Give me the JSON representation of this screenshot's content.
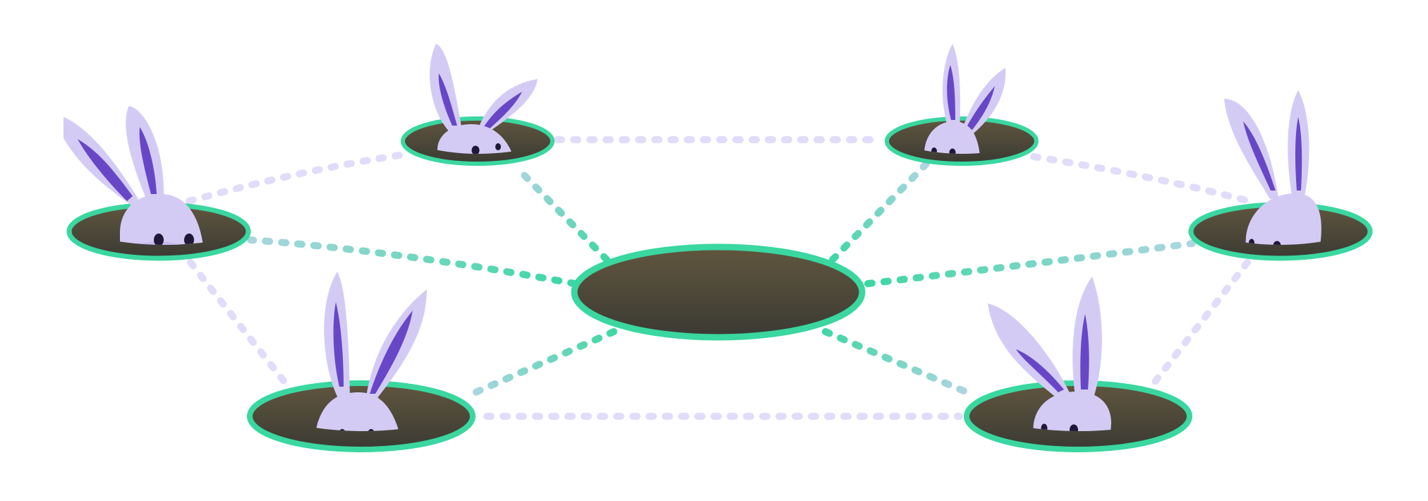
{
  "colors": {
    "background": "#ffffff",
    "hole_rim": "#3ad7a0",
    "hole_top": "#61563f",
    "hole_bottom": "#3a3a33",
    "bunny_body": "#d4cbf5",
    "bunny_shade": "#c6bbf0",
    "bunny_ear_inner": "#6747c7",
    "bunny_eye": "#1f1838",
    "link_green": "#3ad7a0",
    "link_lavender": "#e2dcfa",
    "link_blue": "#b5d4e6"
  },
  "icons": {
    "hole": "rabbit-hole-icon",
    "bunny": "bunny-icon"
  },
  "scene": {
    "center_hole": "central-hole",
    "outer_holes": 6,
    "bunnies": 6,
    "connections": "dotted-link"
  }
}
